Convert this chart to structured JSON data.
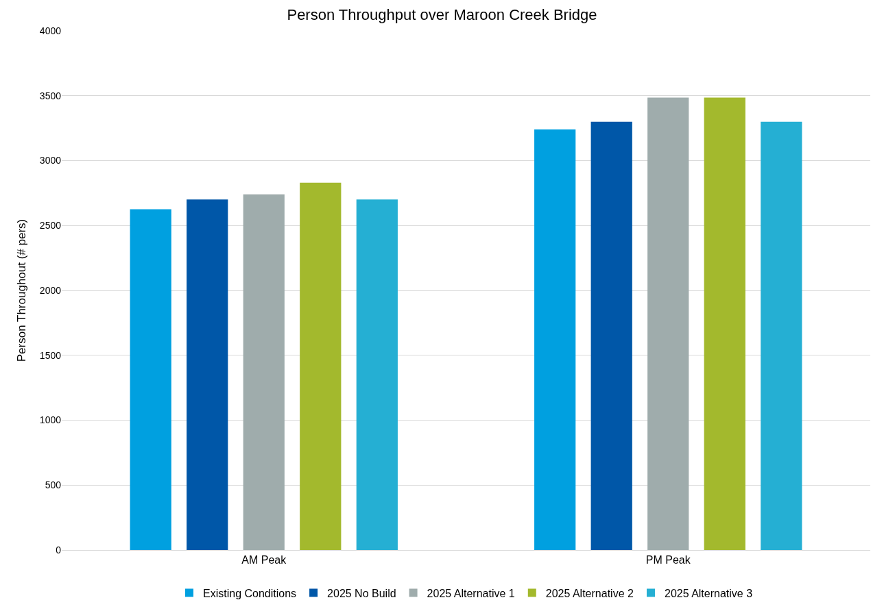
{
  "chart_data": {
    "type": "bar",
    "title": "Person Throughput over Maroon Creek Bridge",
    "ylabel": "Person Throughout (# pers)",
    "categories": [
      "AM Peak",
      "PM Peak"
    ],
    "series": [
      {
        "name": "Existing Conditions",
        "color": "#00a0e0",
        "values": [
          2625,
          3240
        ]
      },
      {
        "name": "2025 No Build",
        "color": "#0057a8",
        "values": [
          2700,
          3300
        ]
      },
      {
        "name": "2025 Alternative 1",
        "color": "#9facac",
        "values": [
          2740,
          3485
        ]
      },
      {
        "name": "2025 Alternative 2",
        "color": "#a3b92d",
        "values": [
          2830,
          3485
        ]
      },
      {
        "name": "2025 Alternative 3",
        "color": "#25afd3",
        "values": [
          2700,
          3300
        ]
      }
    ],
    "ylim": [
      0,
      4000
    ],
    "yticks": [
      0,
      500,
      1000,
      1500,
      2000,
      2500,
      3000,
      3500,
      4000
    ],
    "grid": "y",
    "legend": "bottom"
  }
}
